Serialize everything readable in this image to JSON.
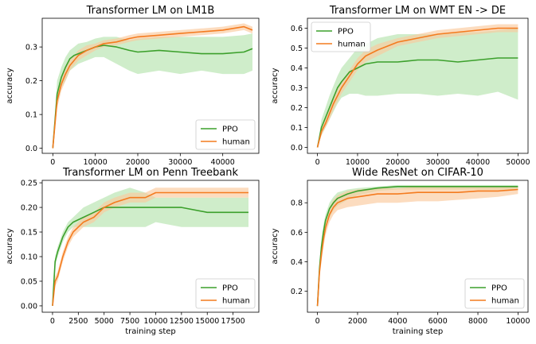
{
  "colors": {
    "ppo": "#3ca02c",
    "ppo_band": "#b5e3ad",
    "human": "#f47b1f",
    "human_band": "#fbc99c"
  },
  "chart_data": [
    {
      "type": "line",
      "title": "Transformer LM on LM1B",
      "xlabel": "",
      "ylabel": "accuracy",
      "xlim": [
        -2500,
        48500
      ],
      "ylim": [
        -0.015,
        0.385
      ],
      "xticks": [
        0,
        10000,
        20000,
        30000,
        40000
      ],
      "xtick_labels": [
        "0",
        "10000",
        "20000",
        "30000",
        "40000"
      ],
      "yticks": [
        0.0,
        0.1,
        0.2,
        0.3
      ],
      "ytick_labels": [
        "0.0",
        "0.1",
        "0.2",
        "0.3"
      ],
      "legend": "lower-right",
      "series": [
        {
          "name": "PPO",
          "x": [
            0,
            1000,
            2000,
            3000,
            4000,
            5000,
            6000,
            8000,
            10000,
            12000,
            15000,
            18000,
            20000,
            25000,
            30000,
            35000,
            40000,
            45000,
            47000
          ],
          "values": [
            0.0,
            0.16,
            0.21,
            0.24,
            0.265,
            0.275,
            0.28,
            0.29,
            0.3,
            0.305,
            0.3,
            0.29,
            0.285,
            0.29,
            0.285,
            0.28,
            0.28,
            0.285,
            0.295
          ],
          "lower": [
            0.0,
            0.12,
            0.18,
            0.2,
            0.23,
            0.24,
            0.25,
            0.26,
            0.27,
            0.27,
            0.25,
            0.23,
            0.22,
            0.23,
            0.22,
            0.23,
            0.22,
            0.22,
            0.23
          ],
          "upper": [
            0.0,
            0.2,
            0.24,
            0.27,
            0.29,
            0.3,
            0.31,
            0.315,
            0.325,
            0.33,
            0.33,
            0.32,
            0.325,
            0.33,
            0.33,
            0.33,
            0.33,
            0.335,
            0.34
          ]
        },
        {
          "name": "human",
          "x": [
            0,
            1000,
            2000,
            3000,
            4000,
            5000,
            6000,
            8000,
            10000,
            12000,
            15000,
            18000,
            20000,
            25000,
            30000,
            35000,
            40000,
            45000,
            47000
          ],
          "values": [
            0.0,
            0.14,
            0.19,
            0.22,
            0.245,
            0.26,
            0.275,
            0.29,
            0.3,
            0.31,
            0.315,
            0.325,
            0.33,
            0.335,
            0.34,
            0.345,
            0.35,
            0.36,
            0.35
          ],
          "lower": [
            0.0,
            0.12,
            0.17,
            0.2,
            0.23,
            0.245,
            0.26,
            0.275,
            0.29,
            0.3,
            0.305,
            0.315,
            0.32,
            0.325,
            0.33,
            0.335,
            0.34,
            0.35,
            0.34
          ],
          "upper": [
            0.0,
            0.16,
            0.21,
            0.24,
            0.26,
            0.275,
            0.29,
            0.305,
            0.31,
            0.32,
            0.325,
            0.335,
            0.34,
            0.345,
            0.35,
            0.355,
            0.36,
            0.37,
            0.36
          ]
        }
      ]
    },
    {
      "type": "line",
      "title": "Transformer LM on WMT EN -> DE",
      "xlabel": "",
      "ylabel": "accuracy",
      "xlim": [
        -2500,
        52500
      ],
      "ylim": [
        -0.03,
        0.65
      ],
      "xticks": [
        0,
        10000,
        20000,
        30000,
        40000,
        50000
      ],
      "xtick_labels": [
        "0",
        "10000",
        "20000",
        "30000",
        "40000",
        "50000"
      ],
      "yticks": [
        0.0,
        0.1,
        0.2,
        0.3,
        0.4,
        0.5,
        0.6
      ],
      "ytick_labels": [
        "0.0",
        "0.1",
        "0.2",
        "0.3",
        "0.4",
        "0.5",
        "0.6"
      ],
      "legend": "top-left",
      "series": [
        {
          "name": "PPO",
          "x": [
            0,
            1000,
            2000,
            3000,
            4000,
            5000,
            6000,
            8000,
            10000,
            12000,
            15000,
            20000,
            25000,
            30000,
            35000,
            40000,
            45000,
            50000
          ],
          "values": [
            0.0,
            0.1,
            0.15,
            0.2,
            0.25,
            0.3,
            0.33,
            0.38,
            0.4,
            0.42,
            0.43,
            0.43,
            0.44,
            0.44,
            0.43,
            0.44,
            0.45,
            0.45
          ],
          "lower": [
            0.0,
            0.06,
            0.1,
            0.14,
            0.18,
            0.22,
            0.25,
            0.27,
            0.27,
            0.26,
            0.26,
            0.27,
            0.27,
            0.26,
            0.27,
            0.26,
            0.28,
            0.24
          ],
          "upper": [
            0.0,
            0.14,
            0.2,
            0.26,
            0.31,
            0.36,
            0.4,
            0.45,
            0.5,
            0.52,
            0.55,
            0.57,
            0.57,
            0.57,
            0.58,
            0.58,
            0.59,
            0.6
          ]
        },
        {
          "name": "human",
          "x": [
            0,
            1000,
            2000,
            3000,
            4000,
            5000,
            6000,
            8000,
            10000,
            12000,
            15000,
            20000,
            25000,
            30000,
            35000,
            40000,
            45000,
            50000
          ],
          "values": [
            0.0,
            0.08,
            0.12,
            0.17,
            0.22,
            0.26,
            0.3,
            0.36,
            0.42,
            0.46,
            0.49,
            0.53,
            0.55,
            0.57,
            0.58,
            0.59,
            0.6,
            0.6
          ],
          "lower": [
            0.0,
            0.06,
            0.1,
            0.14,
            0.19,
            0.23,
            0.27,
            0.33,
            0.39,
            0.43,
            0.46,
            0.51,
            0.53,
            0.55,
            0.56,
            0.57,
            0.58,
            0.58
          ],
          "upper": [
            0.0,
            0.1,
            0.14,
            0.2,
            0.25,
            0.29,
            0.33,
            0.39,
            0.45,
            0.49,
            0.52,
            0.55,
            0.57,
            0.59,
            0.6,
            0.61,
            0.62,
            0.62
          ]
        }
      ]
    },
    {
      "type": "line",
      "title": "Transformer LM on Penn Treebank",
      "xlabel": "training step",
      "ylabel": "accuracy",
      "xlim": [
        -1000,
        20000
      ],
      "ylim": [
        -0.013,
        0.255
      ],
      "xticks": [
        0,
        2500,
        5000,
        7500,
        10000,
        12500,
        15000,
        17500
      ],
      "xtick_labels": [
        "0",
        "2500",
        "5000",
        "7500",
        "10000",
        "12500",
        "15000",
        "17500"
      ],
      "yticks": [
        0.0,
        0.05,
        0.1,
        0.15,
        0.2,
        0.25
      ],
      "ytick_labels": [
        "0.00",
        "0.05",
        "0.10",
        "0.15",
        "0.20",
        "0.25"
      ],
      "legend": "lower-right",
      "series": [
        {
          "name": "PPO",
          "x": [
            0,
            250,
            500,
            1000,
            1500,
            2000,
            3000,
            4000,
            5000,
            6000,
            7500,
            9000,
            10000,
            12500,
            15000,
            17500,
            19000
          ],
          "values": [
            0.0,
            0.09,
            0.11,
            0.14,
            0.16,
            0.17,
            0.18,
            0.19,
            0.2,
            0.2,
            0.2,
            0.2,
            0.2,
            0.2,
            0.19,
            0.19,
            0.19
          ],
          "lower": [
            0.0,
            0.08,
            0.1,
            0.13,
            0.15,
            0.16,
            0.16,
            0.16,
            0.16,
            0.16,
            0.16,
            0.16,
            0.17,
            0.16,
            0.16,
            0.16,
            0.16
          ],
          "upper": [
            0.0,
            0.1,
            0.12,
            0.15,
            0.17,
            0.18,
            0.2,
            0.21,
            0.22,
            0.23,
            0.24,
            0.23,
            0.22,
            0.22,
            0.22,
            0.22,
            0.22
          ]
        },
        {
          "name": "human",
          "x": [
            0,
            250,
            500,
            1000,
            1500,
            2000,
            3000,
            4000,
            5000,
            6000,
            7500,
            9000,
            10000,
            12500,
            15000,
            17500,
            19000
          ],
          "values": [
            0.0,
            0.05,
            0.06,
            0.1,
            0.13,
            0.15,
            0.17,
            0.18,
            0.2,
            0.21,
            0.22,
            0.22,
            0.23,
            0.23,
            0.23,
            0.23,
            0.23
          ],
          "lower": [
            0.0,
            0.04,
            0.05,
            0.09,
            0.12,
            0.14,
            0.16,
            0.17,
            0.19,
            0.2,
            0.21,
            0.21,
            0.22,
            0.22,
            0.22,
            0.22,
            0.22
          ],
          "upper": [
            0.0,
            0.06,
            0.07,
            0.11,
            0.14,
            0.16,
            0.18,
            0.19,
            0.21,
            0.22,
            0.23,
            0.23,
            0.24,
            0.24,
            0.24,
            0.24,
            0.24
          ]
        }
      ]
    },
    {
      "type": "line",
      "title": "Wide ResNet on CIFAR-10",
      "xlabel": "training step",
      "ylabel": "accuracy",
      "xlim": [
        -500,
        10500
      ],
      "ylim": [
        0.058,
        0.952
      ],
      "xticks": [
        0,
        2000,
        4000,
        6000,
        8000,
        10000
      ],
      "xtick_labels": [
        "0",
        "2000",
        "4000",
        "6000",
        "8000",
        "10000"
      ],
      "yticks": [
        0.2,
        0.4,
        0.6,
        0.8
      ],
      "ytick_labels": [
        "0.2",
        "0.4",
        "0.6",
        "0.8"
      ],
      "legend": "lower-right",
      "series": [
        {
          "name": "PPO",
          "x": [
            0,
            100,
            200,
            300,
            400,
            600,
            800,
            1000,
            1500,
            2000,
            3000,
            4000,
            5000,
            6000,
            7000,
            8000,
            9000,
            10000
          ],
          "values": [
            0.1,
            0.35,
            0.5,
            0.6,
            0.68,
            0.76,
            0.8,
            0.83,
            0.86,
            0.88,
            0.9,
            0.91,
            0.91,
            0.91,
            0.91,
            0.91,
            0.91,
            0.91
          ],
          "lower": [
            0.1,
            0.3,
            0.45,
            0.55,
            0.62,
            0.7,
            0.75,
            0.78,
            0.82,
            0.85,
            0.88,
            0.89,
            0.89,
            0.89,
            0.89,
            0.89,
            0.89,
            0.89
          ],
          "upper": [
            0.1,
            0.4,
            0.55,
            0.65,
            0.72,
            0.8,
            0.84,
            0.87,
            0.89,
            0.9,
            0.91,
            0.92,
            0.92,
            0.92,
            0.92,
            0.92,
            0.92,
            0.92
          ]
        },
        {
          "name": "human",
          "x": [
            0,
            100,
            200,
            300,
            400,
            600,
            800,
            1000,
            1500,
            2000,
            3000,
            4000,
            5000,
            6000,
            7000,
            8000,
            9000,
            10000
          ],
          "values": [
            0.1,
            0.33,
            0.45,
            0.55,
            0.63,
            0.72,
            0.77,
            0.8,
            0.83,
            0.84,
            0.86,
            0.86,
            0.87,
            0.87,
            0.87,
            0.88,
            0.88,
            0.89
          ],
          "lower": [
            0.1,
            0.28,
            0.4,
            0.5,
            0.58,
            0.67,
            0.72,
            0.75,
            0.77,
            0.78,
            0.8,
            0.8,
            0.81,
            0.81,
            0.82,
            0.83,
            0.84,
            0.86
          ],
          "upper": [
            0.1,
            0.38,
            0.5,
            0.6,
            0.68,
            0.77,
            0.82,
            0.85,
            0.88,
            0.89,
            0.9,
            0.9,
            0.91,
            0.91,
            0.91,
            0.91,
            0.91,
            0.91
          ]
        }
      ]
    }
  ]
}
